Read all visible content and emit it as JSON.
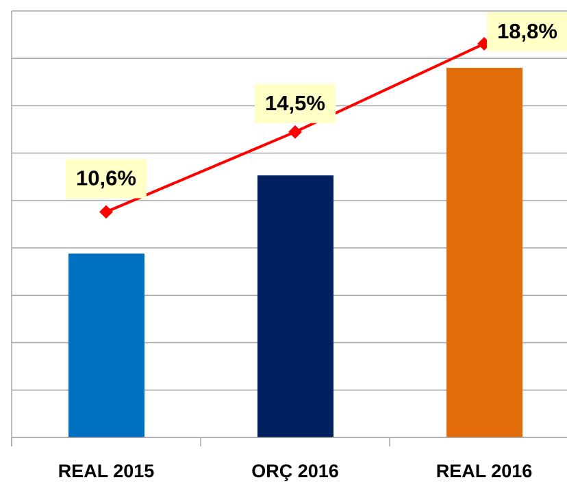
{
  "chart_data": {
    "type": "bar",
    "categories": [
      "REAL 2015",
      "ORÇ 2016",
      "REAL 2016"
    ],
    "series": [
      {
        "type": "bar",
        "values": [
          3.88,
          5.53,
          7.8
        ],
        "colors": [
          "#0070c0",
          "#002060",
          "#e36c0a"
        ]
      },
      {
        "type": "line",
        "axis": "y2",
        "color": "#ff0000",
        "values": [
          10.6,
          14.5,
          18.8
        ],
        "value_labels": [
          "10,6%",
          "14,5%",
          "18,8%"
        ]
      }
    ],
    "ylim": [
      0,
      9
    ],
    "yticks": [
      0,
      1,
      2,
      3,
      4,
      5,
      6,
      7,
      8,
      9
    ],
    "y2lim": [
      -0.4,
      20.4
    ],
    "grid": true
  }
}
